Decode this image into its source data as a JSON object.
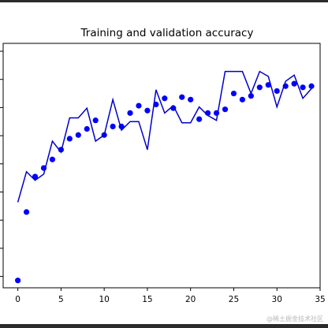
{
  "watermark": "@稀土掘金技术社区",
  "chart_data": {
    "type": "line",
    "title": "Training and validation accuracy",
    "xlabel": "",
    "ylabel": "",
    "xlim": [
      -1.7,
      35
    ],
    "ylim": [
      0.0,
      1.0
    ],
    "xticks": [
      0,
      5,
      10,
      15,
      20,
      25,
      30,
      35
    ],
    "yticks": [],
    "grid": false,
    "legend": "none",
    "series": [
      {
        "type": "scatter",
        "color": "#0000ff",
        "x": [
          0,
          1,
          2,
          3,
          4,
          5,
          6,
          7,
          8,
          9,
          10,
          11,
          12,
          13,
          14,
          15,
          16,
          17,
          18,
          19,
          20,
          21,
          22,
          23,
          24,
          25,
          26,
          27,
          28,
          29,
          30,
          31,
          32,
          33,
          34
        ],
        "y": [
          0.03,
          0.31,
          0.455,
          0.49,
          0.525,
          0.565,
          0.61,
          0.625,
          0.65,
          0.685,
          0.625,
          0.66,
          0.66,
          0.715,
          0.745,
          0.725,
          0.75,
          0.775,
          0.735,
          0.78,
          0.77,
          0.69,
          0.715,
          0.715,
          0.73,
          0.795,
          0.77,
          0.785,
          0.82,
          0.83,
          0.805,
          0.825,
          0.835,
          0.82,
          0.825
        ]
      },
      {
        "type": "line",
        "color": "#0000cc",
        "x": [
          0,
          1,
          2,
          3,
          4,
          5,
          6,
          7,
          8,
          9,
          10,
          11,
          12,
          13,
          14,
          15,
          16,
          17,
          18,
          19,
          20,
          21,
          22,
          23,
          24,
          25,
          26,
          27,
          28,
          29,
          30,
          31,
          32,
          33,
          34
        ],
        "y": [
          0.35,
          0.475,
          0.44,
          0.465,
          0.6,
          0.555,
          0.695,
          0.695,
          0.735,
          0.6,
          0.625,
          0.77,
          0.645,
          0.68,
          0.68,
          0.565,
          0.81,
          0.715,
          0.745,
          0.675,
          0.675,
          0.74,
          0.705,
          0.685,
          0.885,
          0.885,
          0.885,
          0.795,
          0.885,
          0.865,
          0.74,
          0.845,
          0.87,
          0.775,
          0.815
        ]
      }
    ]
  }
}
